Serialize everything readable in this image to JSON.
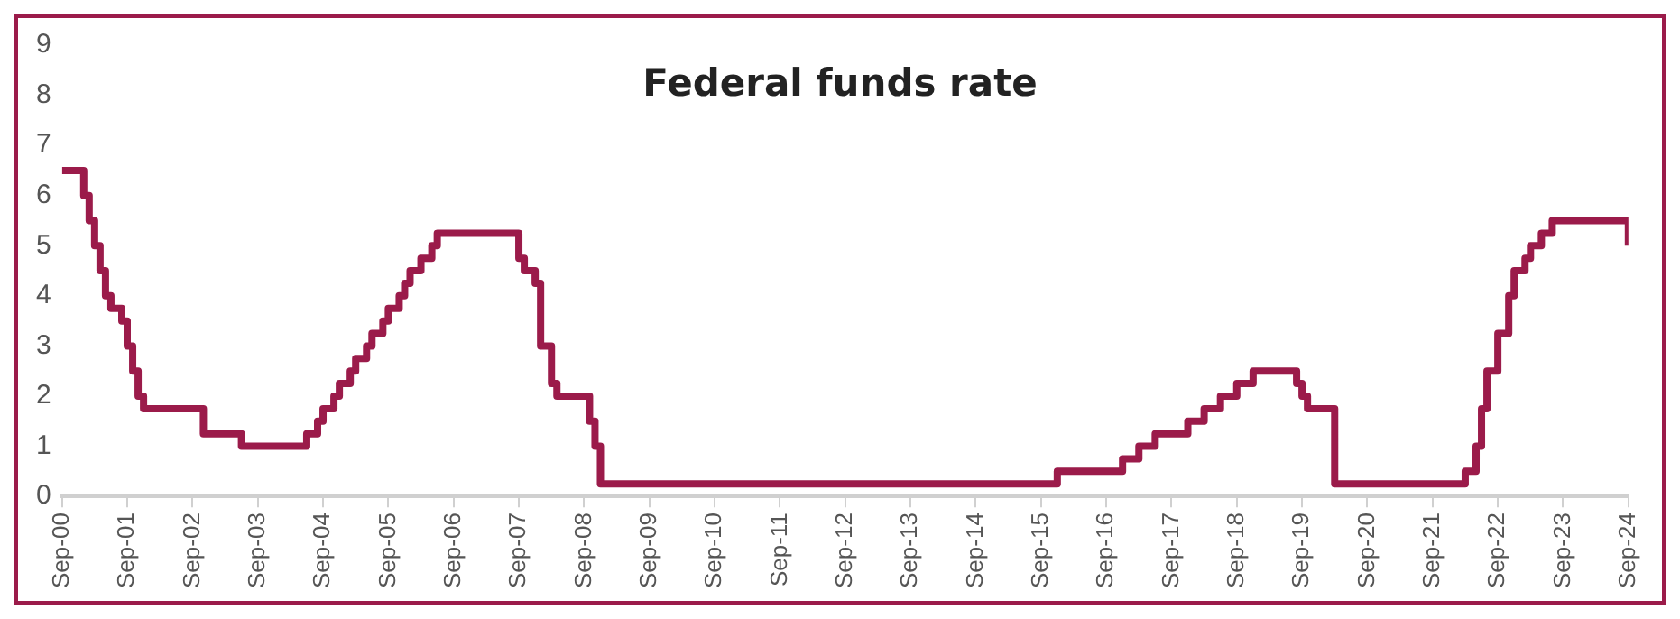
{
  "chart_data": {
    "type": "step",
    "title": "Federal funds rate",
    "x": [
      "2000-09",
      "2001-01",
      "2001-02",
      "2001-03",
      "2001-04",
      "2001-05",
      "2001-06",
      "2001-08",
      "2001-09",
      "2001-10",
      "2001-11",
      "2001-12",
      "2002-11",
      "2003-06",
      "2004-06",
      "2004-08",
      "2004-09",
      "2004-11",
      "2004-12",
      "2005-02",
      "2005-03",
      "2005-05",
      "2005-06",
      "2005-08",
      "2005-09",
      "2005-11",
      "2005-12",
      "2006-01",
      "2006-03",
      "2006-05",
      "2006-06",
      "2007-09",
      "2007-10",
      "2007-12",
      "2008-01",
      "2008-03",
      "2008-04",
      "2008-10",
      "2008-11",
      "2008-12",
      "2015-12",
      "2016-12",
      "2017-03",
      "2017-06",
      "2017-12",
      "2018-03",
      "2018-06",
      "2018-09",
      "2018-12",
      "2019-08",
      "2019-09",
      "2019-10",
      "2020-03",
      "2022-03",
      "2022-05",
      "2022-06",
      "2022-07",
      "2022-09",
      "2022-11",
      "2022-12",
      "2023-02",
      "2023-03",
      "2023-05",
      "2023-07",
      "2024-09"
    ],
    "series": [
      {
        "color": "#9b1b4a",
        "values": [
          6.5,
          6.0,
          5.5,
          5.0,
          4.5,
          4.0,
          3.75,
          3.5,
          3.0,
          2.5,
          2.0,
          1.75,
          1.25,
          1.0,
          1.25,
          1.5,
          1.75,
          2.0,
          2.25,
          2.5,
          2.75,
          3.0,
          3.25,
          3.5,
          3.75,
          4.0,
          4.25,
          4.5,
          4.75,
          5.0,
          5.25,
          4.75,
          4.5,
          4.25,
          3.0,
          2.25,
          2.0,
          1.5,
          1.0,
          0.25,
          0.5,
          0.75,
          1.0,
          1.25,
          1.5,
          1.75,
          2.0,
          2.25,
          2.5,
          2.25,
          2.0,
          1.75,
          0.25,
          0.5,
          1.0,
          1.75,
          2.5,
          3.25,
          4.0,
          4.5,
          4.75,
          5.0,
          5.25,
          5.5,
          5.0
        ]
      }
    ],
    "xlim": [
      "2000-09",
      "2024-09"
    ],
    "xticks": [
      {
        "value": "2000-09",
        "label": "Sep-00"
      },
      {
        "value": "2001-09",
        "label": "Sep-01"
      },
      {
        "value": "2002-09",
        "label": "Sep-02"
      },
      {
        "value": "2003-09",
        "label": "Sep-03"
      },
      {
        "value": "2004-09",
        "label": "Sep-04"
      },
      {
        "value": "2005-09",
        "label": "Sep-05"
      },
      {
        "value": "2006-09",
        "label": "Sep-06"
      },
      {
        "value": "2007-09",
        "label": "Sep-07"
      },
      {
        "value": "2008-09",
        "label": "Sep-08"
      },
      {
        "value": "2009-09",
        "label": "Sep-09"
      },
      {
        "value": "2010-09",
        "label": "Sep-10"
      },
      {
        "value": "2011-09",
        "label": "Sep-11"
      },
      {
        "value": "2012-09",
        "label": "Sep-12"
      },
      {
        "value": "2013-09",
        "label": "Sep-13"
      },
      {
        "value": "2014-09",
        "label": "Sep-14"
      },
      {
        "value": "2015-09",
        "label": "Sep-15"
      },
      {
        "value": "2016-09",
        "label": "Sep-16"
      },
      {
        "value": "2017-09",
        "label": "Sep-17"
      },
      {
        "value": "2018-09",
        "label": "Sep-18"
      },
      {
        "value": "2019-09",
        "label": "Sep-19"
      },
      {
        "value": "2020-09",
        "label": "Sep-20"
      },
      {
        "value": "2021-09",
        "label": "Sep-21"
      },
      {
        "value": "2022-09",
        "label": "Sep-22"
      },
      {
        "value": "2023-09",
        "label": "Sep-23"
      },
      {
        "value": "2024-09",
        "label": "Sep-24"
      }
    ],
    "ylim": [
      0,
      9
    ],
    "yticks": [
      0,
      1,
      2,
      3,
      4,
      5,
      6,
      7,
      8,
      9
    ],
    "grid": false,
    "legend": false,
    "marker": "none",
    "line_style": "solid"
  }
}
